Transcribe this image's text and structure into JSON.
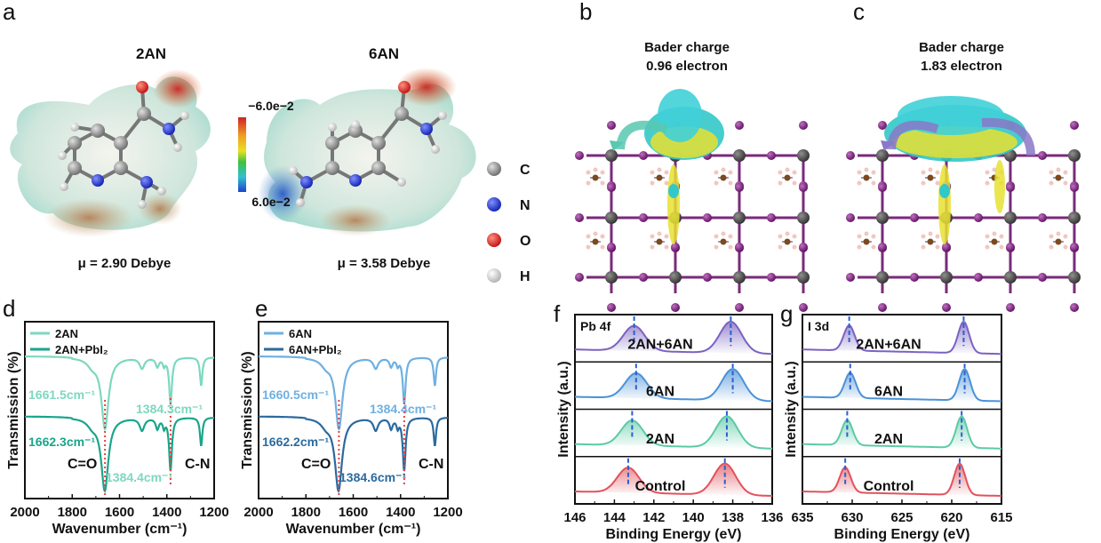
{
  "panels": {
    "a": {
      "label": "a",
      "mol1": "2AN",
      "mol2": "6AN",
      "dipole1": "μ = 2.90 Debye",
      "dipole2": "μ = 3.58 Debye",
      "colorbar": {
        "max_label": "−6.0e−2",
        "min_label": "6.0e−2"
      },
      "atom_legend": [
        {
          "symbol": "C",
          "color": "#9a9a9a"
        },
        {
          "symbol": "N",
          "color": "#2430d8"
        },
        {
          "symbol": "O",
          "color": "#e0231b"
        },
        {
          "symbol": "H",
          "color": "#eeeeee"
        }
      ]
    },
    "b": {
      "label": "b",
      "title": "Bader charge",
      "value": "0.96 electron"
    },
    "c": {
      "label": "c",
      "title": "Bader charge",
      "value": "1.83 electron"
    }
  },
  "chart_data": [
    {
      "id": "d",
      "label": "d",
      "type": "line",
      "xlabel": "Wavenumber (cm⁻¹)",
      "ylabel": "Transmission (%)",
      "xlim": [
        2000,
        1200
      ],
      "ylim": [
        0,
        100
      ],
      "xticks": [
        "2000",
        "1800",
        "1600",
        "1400",
        "1200"
      ],
      "legend": {
        "placement": "top-left",
        "entries": [
          "2AN",
          "2AN+PbI₂"
        ]
      },
      "series": [
        {
          "name": "2AN",
          "color": "#7dd8bf",
          "baseline": 80,
          "peaks": [
            [
              1715,
              4,
              25
            ],
            [
              1661.5,
              40,
              18
            ],
            [
              1505,
              6,
              12
            ],
            [
              1440,
              5,
              8
            ],
            [
              1412,
              4,
              6
            ],
            [
              1384.3,
              26,
              7
            ],
            [
              1255,
              16,
              6
            ]
          ]
        },
        {
          "name": "2AN+PbI₂",
          "color": "#1aa58a",
          "baseline": 46,
          "peaks": [
            [
              1715,
              4,
              25
            ],
            [
              1662.3,
              41,
              18
            ],
            [
              1505,
              7,
              12
            ],
            [
              1440,
              6,
              8
            ],
            [
              1412,
              5,
              6
            ],
            [
              1384.4,
              30,
              7
            ],
            [
              1255,
              16,
              6
            ]
          ]
        }
      ],
      "annotations": [
        {
          "text": "1661.5cm⁻¹",
          "color": "#7dd8bf"
        },
        {
          "text": "1384.3cm⁻¹",
          "color": "#7dd8bf"
        },
        {
          "text": "1662.3cm⁻¹",
          "color": "#1aa58a"
        },
        {
          "text": "1384.4cm⁻¹",
          "color": "#7dd8bf"
        },
        {
          "text": "C=O",
          "color": "#111111"
        },
        {
          "text": "C-N",
          "color": "#111111"
        }
      ],
      "markers_x": [
        1661.5,
        1384.3
      ]
    },
    {
      "id": "e",
      "label": "e",
      "type": "line",
      "xlabel": "Wavenumber (cm⁻¹)",
      "ylabel": "Transmission (%)",
      "xlim": [
        2000,
        1200
      ],
      "ylim": [
        0,
        100
      ],
      "xticks": [
        "2000",
        "1800",
        "1600",
        "1400",
        "1200"
      ],
      "legend": {
        "placement": "top-left",
        "entries": [
          "6AN",
          "6AN+PbI₂"
        ]
      },
      "series": [
        {
          "name": "6AN",
          "color": "#6fb0e2",
          "baseline": 80,
          "peaks": [
            [
              1715,
              4,
              25
            ],
            [
              1660.5,
              40,
              18
            ],
            [
              1505,
              6,
              12
            ],
            [
              1440,
              5,
              8
            ],
            [
              1412,
              4,
              6
            ],
            [
              1384.4,
              26,
              7
            ],
            [
              1255,
              16,
              6
            ]
          ]
        },
        {
          "name": "6AN+PbI₂",
          "color": "#2b6a9e",
          "baseline": 46,
          "peaks": [
            [
              1715,
              4,
              25
            ],
            [
              1662.2,
              41,
              18
            ],
            [
              1505,
              7,
              12
            ],
            [
              1440,
              6,
              8
            ],
            [
              1412,
              5,
              6
            ],
            [
              1384.6,
              30,
              7
            ],
            [
              1255,
              16,
              6
            ]
          ]
        }
      ],
      "annotations": [
        {
          "text": "1660.5cm⁻¹",
          "color": "#6fb0e2"
        },
        {
          "text": "1384.4cm⁻¹",
          "color": "#6fb0e2"
        },
        {
          "text": "1662.2cm⁻¹",
          "color": "#2b6a9e"
        },
        {
          "text": "1384.6cm⁻¹",
          "color": "#2b6a9e"
        },
        {
          "text": "C=O",
          "color": "#111111"
        },
        {
          "text": "C-N",
          "color": "#111111"
        }
      ],
      "markers_x": [
        1660.5,
        1384.4
      ]
    },
    {
      "id": "f",
      "label": "f",
      "type": "area",
      "title": "Pb 4f",
      "xlabel": "Binding Energy (eV)",
      "ylabel": "Intensity (a.u.)",
      "xlim": [
        146,
        136
      ],
      "xticks": [
        "146",
        "144",
        "142",
        "140",
        "138",
        "136"
      ],
      "sigma": 0.55,
      "series": [
        {
          "name": "2AN+6AN",
          "color": "#7b62c0",
          "peaks": [
            143.0,
            138.1
          ]
        },
        {
          "name": "6AN",
          "color": "#4a92d8",
          "peaks": [
            142.9,
            138.0
          ]
        },
        {
          "name": "2AN",
          "color": "#5ccaa6",
          "peaks": [
            143.1,
            138.3
          ]
        },
        {
          "name": "Control",
          "color": "#e2525c",
          "peaks": [
            143.3,
            138.4
          ]
        }
      ]
    },
    {
      "id": "g",
      "label": "g",
      "type": "area",
      "title": "I 3d",
      "xlabel": "Binding Energy (eV)",
      "ylabel": "Intensity (a.u.)",
      "xlim": [
        635,
        615
      ],
      "xticks": [
        "635",
        "630",
        "625",
        "620",
        "615"
      ],
      "sigma": 0.55,
      "series": [
        {
          "name": "2AN+6AN",
          "color": "#7b62c0",
          "peaks": [
            630.3,
            618.8
          ]
        },
        {
          "name": "6AN",
          "color": "#4a92d8",
          "peaks": [
            630.2,
            618.7
          ]
        },
        {
          "name": "2AN",
          "color": "#5ccaa6",
          "peaks": [
            630.5,
            619.0
          ]
        },
        {
          "name": "Control",
          "color": "#e2525c",
          "peaks": [
            630.7,
            619.2
          ]
        }
      ]
    }
  ]
}
